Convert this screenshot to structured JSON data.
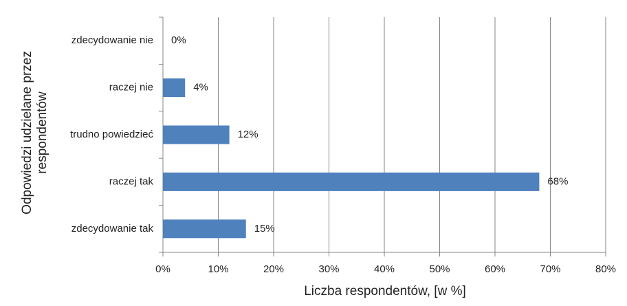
{
  "chart_data": {
    "type": "barh",
    "xlabel": "Liczba respondentów, [w %]",
    "ylabel": [
      "Odpowiedzi udzielane przez",
      "respondentów"
    ],
    "categories": [
      "zdecydowanie nie",
      "raczej nie",
      "trudno powiedzieć",
      "raczej tak",
      "zdecydowanie tak"
    ],
    "values": [
      0,
      4,
      12,
      68,
      15
    ],
    "value_labels": [
      "0%",
      "4%",
      "12%",
      "68%",
      "15%"
    ],
    "color": "#4f81bd",
    "xlim": [
      0,
      80
    ],
    "xticks": [
      {
        "value": 0,
        "label": "0%"
      },
      {
        "value": 10,
        "label": "10%"
      },
      {
        "value": 20,
        "label": "20%"
      },
      {
        "value": 30,
        "label": "30%"
      },
      {
        "value": 40,
        "label": "40%"
      },
      {
        "value": 50,
        "label": "50%"
      },
      {
        "value": 60,
        "label": "60%"
      },
      {
        "value": 70,
        "label": "70%"
      },
      {
        "value": 80,
        "label": "80%"
      }
    ],
    "grid": true
  }
}
